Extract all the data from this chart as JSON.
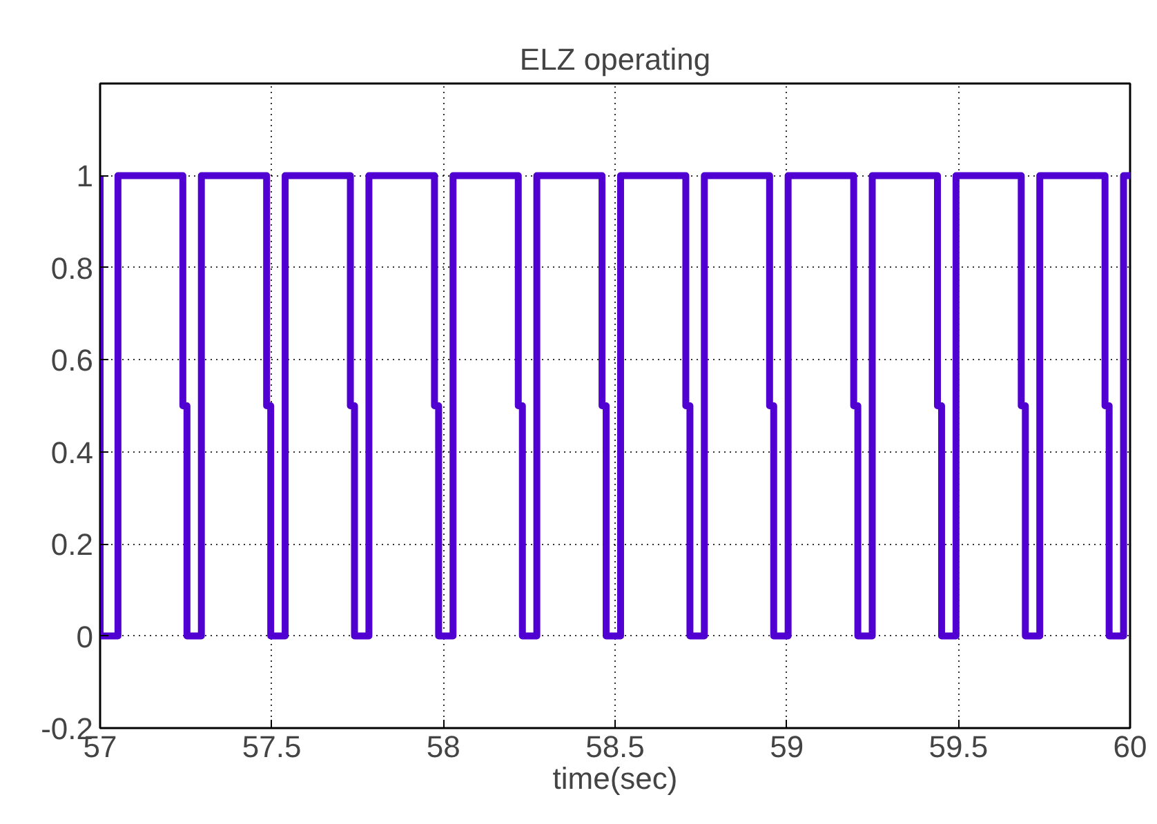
{
  "chart_data": {
    "type": "line",
    "title": "ELZ operating",
    "xlabel": "time(sec)",
    "xlim": [
      57,
      60
    ],
    "xticks": [
      57,
      57.5,
      58,
      58.5,
      59,
      59.5,
      60
    ],
    "ylim": [
      -0.2,
      1.2
    ],
    "yticks": [
      -0.2,
      0,
      0.2,
      0.4,
      0.6,
      0.8,
      1
    ],
    "grid": true,
    "marker": "none",
    "line_style": "solid",
    "series": [
      {
        "color": "#5000d0",
        "x": [
          57,
          57,
          57.052,
          57.052,
          57.241,
          57.241,
          57.253,
          57.253,
          57.295,
          57.295,
          57.485,
          57.485,
          57.497,
          57.497,
          57.539,
          57.539,
          57.729,
          57.729,
          57.741,
          57.741,
          57.783,
          57.783,
          57.974,
          57.974,
          57.986,
          57.986,
          58.028,
          58.028,
          58.218,
          58.218,
          58.23,
          58.23,
          58.272,
          58.272,
          58.462,
          58.462,
          58.474,
          58.474,
          58.516,
          58.516,
          58.706,
          58.706,
          58.718,
          58.718,
          58.76,
          58.76,
          58.95,
          58.95,
          58.962,
          58.962,
          59.004,
          59.004,
          59.195,
          59.195,
          59.207,
          59.207,
          59.249,
          59.249,
          59.439,
          59.439,
          59.451,
          59.451,
          59.493,
          59.493,
          59.683,
          59.683,
          59.695,
          59.695,
          59.737,
          59.737,
          59.927,
          59.927,
          59.939,
          59.939,
          59.981,
          59.981,
          60
        ],
        "values": [
          1,
          0,
          0,
          1,
          1,
          0.5,
          0.5,
          0,
          0,
          1,
          1,
          0.5,
          0.5,
          0,
          0,
          1,
          1,
          0.5,
          0.5,
          0,
          0,
          1,
          1,
          0.5,
          0.5,
          0,
          0,
          1,
          1,
          0.5,
          0.5,
          0,
          0,
          1,
          1,
          0.5,
          0.5,
          0,
          0,
          1,
          1,
          0.5,
          0.5,
          0,
          0,
          1,
          1,
          0.5,
          0.5,
          0,
          0,
          1,
          1,
          0.5,
          0.5,
          0,
          0,
          1,
          1,
          0.5,
          0.5,
          0,
          0,
          1,
          1,
          0.5,
          0.5,
          0,
          0,
          1,
          1,
          0.5,
          0.5,
          0,
          0,
          1,
          1
        ]
      }
    ]
  }
}
